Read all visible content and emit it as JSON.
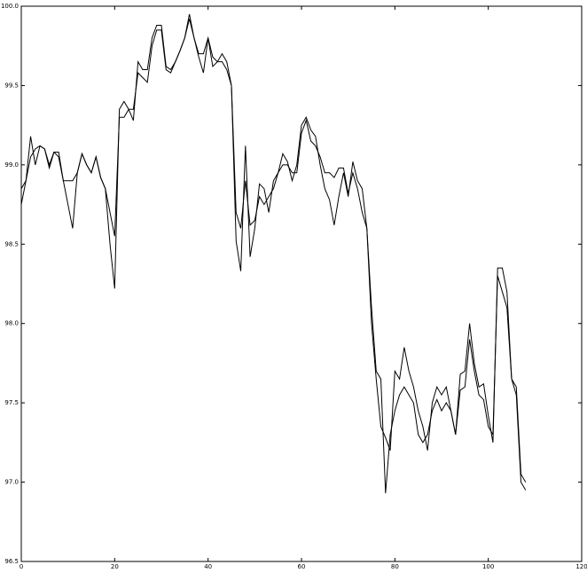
{
  "chart_data": {
    "type": "line",
    "x": [
      0,
      1,
      2,
      3,
      4,
      5,
      6,
      7,
      8,
      9,
      10,
      11,
      12,
      13,
      14,
      15,
      16,
      17,
      18,
      19,
      20,
      21,
      22,
      23,
      24,
      25,
      26,
      27,
      28,
      29,
      30,
      31,
      32,
      33,
      34,
      35,
      36,
      37,
      38,
      39,
      40,
      41,
      42,
      43,
      44,
      45,
      46,
      47,
      48,
      49,
      50,
      51,
      52,
      53,
      54,
      55,
      56,
      57,
      58,
      59,
      60,
      61,
      62,
      63,
      64,
      65,
      66,
      67,
      68,
      69,
      70,
      71,
      72,
      73,
      74,
      75,
      76,
      77,
      78,
      79,
      80,
      81,
      82,
      83,
      84,
      85,
      86,
      87,
      88,
      89,
      90,
      91,
      92,
      93,
      94,
      95,
      96,
      97,
      98,
      99,
      100,
      101,
      102,
      103,
      104,
      105,
      106,
      107,
      108
    ],
    "series": [
      {
        "color": "#000000",
        "values": [
          98.75,
          98.9,
          99.18,
          99.0,
          99.12,
          99.1,
          98.98,
          99.08,
          99.08,
          98.9,
          98.75,
          98.6,
          98.95,
          99.07,
          99.0,
          98.95,
          99.05,
          98.92,
          98.85,
          98.5,
          98.22,
          99.35,
          99.4,
          99.35,
          99.28,
          99.65,
          99.6,
          99.6,
          99.8,
          99.88,
          99.88,
          99.62,
          99.6,
          99.65,
          99.72,
          99.8,
          99.95,
          99.8,
          99.68,
          99.58,
          99.8,
          99.62,
          99.65,
          99.7,
          99.65,
          99.5,
          98.52,
          98.33,
          99.12,
          98.42,
          98.6,
          98.88,
          98.85,
          98.7,
          98.9,
          98.95,
          99.07,
          99.02,
          98.9,
          99.0,
          99.25,
          99.3,
          99.22,
          99.18,
          99.0,
          98.85,
          98.78,
          98.62,
          98.8,
          98.95,
          98.8,
          99.02,
          98.9,
          98.85,
          98.6,
          98.0,
          97.65,
          97.35,
          97.28,
          97.2,
          97.7,
          97.65,
          97.85,
          97.7,
          97.6,
          97.45,
          97.35,
          97.2,
          97.5,
          97.6,
          97.55,
          97.6,
          97.45,
          97.3,
          97.68,
          97.7,
          98.0,
          97.75,
          97.6,
          97.62,
          97.42,
          97.25,
          98.35,
          98.35,
          98.2,
          97.65,
          97.6,
          97.05,
          97.0
        ]
      },
      {
        "color": "#000000",
        "values": [
          98.85,
          98.9,
          99.05,
          99.1,
          99.12,
          99.1,
          99.0,
          99.08,
          99.05,
          98.9,
          98.9,
          98.9,
          98.95,
          99.07,
          99.0,
          98.95,
          99.05,
          98.92,
          98.85,
          98.7,
          98.55,
          99.3,
          99.3,
          99.35,
          99.35,
          99.58,
          99.55,
          99.52,
          99.75,
          99.85,
          99.85,
          99.6,
          99.58,
          99.65,
          99.72,
          99.8,
          99.92,
          99.8,
          99.7,
          99.7,
          99.8,
          99.68,
          99.65,
          99.65,
          99.6,
          99.5,
          98.7,
          98.6,
          98.9,
          98.62,
          98.65,
          98.8,
          98.75,
          98.8,
          98.85,
          98.95,
          99.0,
          99.0,
          98.95,
          98.95,
          99.2,
          99.28,
          99.15,
          99.12,
          99.05,
          98.95,
          98.95,
          98.92,
          98.98,
          98.98,
          98.82,
          98.95,
          98.85,
          98.7,
          98.6,
          98.1,
          97.7,
          97.65,
          96.93,
          97.3,
          97.45,
          97.55,
          97.6,
          97.55,
          97.5,
          97.3,
          97.25,
          97.3,
          97.45,
          97.52,
          97.45,
          97.5,
          97.45,
          97.3,
          97.58,
          97.6,
          97.9,
          97.7,
          97.55,
          97.52,
          97.35,
          97.3,
          98.3,
          98.2,
          98.1,
          97.65,
          97.55,
          97.0,
          96.95
        ]
      }
    ],
    "xlim": [
      0,
      120
    ],
    "xticks": [
      0,
      20,
      40,
      60,
      80,
      100,
      120
    ],
    "ylim": [
      96.5,
      100.0
    ],
    "yticks": [
      96.5,
      {
        "value": 97,
        "label": "97.0"
      },
      97.5,
      {
        "value": 98,
        "label": "98.0"
      },
      98.5,
      {
        "value": 99,
        "label": "99.0"
      },
      99.5,
      {
        "value": 100,
        "label": "100.0"
      }
    ],
    "grid": false
  }
}
